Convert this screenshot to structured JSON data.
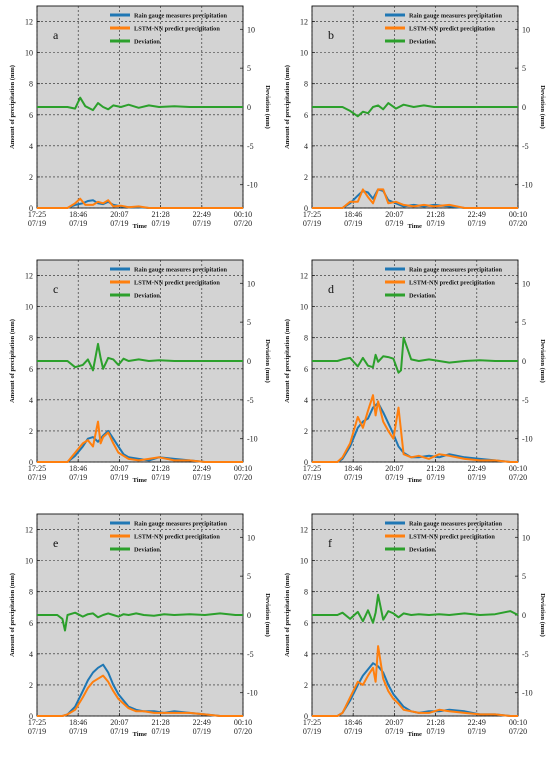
{
  "colors": {
    "gauge": "#1f77b4",
    "lstm": "#ff7f0e",
    "deviation": "#2ca02c",
    "plot_bg": "#d3d3d3"
  },
  "legend": {
    "gauge": "Rain gauge measures precipitation",
    "lstm": "LSTM-NN predict precipitation",
    "deviation": "Deviation"
  },
  "axes": {
    "ylabel_left": "Amount of precipitation (mm)",
    "ylabel_right": "Deviation (mm)",
    "xlabel": "Time",
    "x_ticks": [
      {
        "time": "17:25",
        "date": "07/19"
      },
      {
        "time": "18:46",
        "date": "07/19"
      },
      {
        "time": "20:07",
        "date": "07/19"
      },
      {
        "time": "21:28",
        "date": "07/19"
      },
      {
        "time": "22:49",
        "date": "07/19"
      },
      {
        "time": "00:10",
        "date": "07/20"
      }
    ],
    "y_left_ticks": [
      "0",
      "2",
      "4",
      "6",
      "8",
      "10",
      "12"
    ],
    "y_right_ticks": [
      "10",
      "5",
      "0",
      "-5",
      "-10"
    ]
  },
  "chart_data": [
    {
      "type": "line",
      "panel_label": "a",
      "xlabel": "Time",
      "ylabel": "Amount of precipitation (mm)",
      "y2label": "Deviation (mm)",
      "xlim_minutes_from_1725": [
        0,
        405
      ],
      "ylim": [
        0,
        13
      ],
      "y2lim": [
        -13,
        13
      ],
      "grid": true,
      "legend_position": "top-right",
      "series": [
        {
          "name": "Rain gauge measures precipitation",
          "x": [
            0,
            50,
            60,
            75,
            90,
            100,
            110,
            120,
            130,
            140,
            150,
            165,
            180,
            200,
            220,
            240,
            270,
            300,
            330,
            360,
            405
          ],
          "values": [
            0,
            0,
            0,
            0.2,
            0.3,
            0.45,
            0.5,
            0.3,
            0.25,
            0.4,
            0.2,
            0.1,
            0.05,
            0.05,
            0,
            0,
            0,
            0,
            0,
            0,
            0
          ]
        },
        {
          "name": "LSTM-NN predict precipitation",
          "x": [
            0,
            50,
            60,
            75,
            85,
            95,
            110,
            120,
            130,
            140,
            150,
            165,
            180,
            200,
            220,
            240,
            270,
            300,
            330,
            360,
            405
          ],
          "values": [
            0,
            0,
            0,
            0.3,
            0.6,
            0.2,
            0.2,
            0.4,
            0.3,
            0.5,
            0.1,
            0.15,
            0.05,
            0.1,
            0,
            0,
            0,
            0,
            0,
            0,
            0
          ]
        },
        {
          "name": "Deviation",
          "x": [
            0,
            60,
            75,
            85,
            95,
            110,
            120,
            130,
            140,
            150,
            165,
            180,
            200,
            220,
            240,
            270,
            300,
            330,
            360,
            405
          ],
          "values": [
            0,
            0,
            -0.2,
            1.2,
            0.1,
            -0.4,
            0.5,
            0,
            -0.3,
            0.2,
            0,
            0.3,
            -0.1,
            0.2,
            0,
            0.1,
            0,
            0,
            0,
            0
          ]
        }
      ]
    },
    {
      "type": "line",
      "panel_label": "b",
      "xlabel": "Time",
      "ylabel": "Amount of precipitation (mm)",
      "y2label": "Deviation (mm)",
      "xlim_minutes_from_1725": [
        0,
        405
      ],
      "ylim": [
        0,
        13
      ],
      "y2lim": [
        -13,
        13
      ],
      "grid": true,
      "legend_position": "top-right",
      "series": [
        {
          "name": "Rain gauge measures precipitation",
          "x": [
            0,
            60,
            75,
            90,
            100,
            110,
            120,
            130,
            140,
            150,
            165,
            180,
            200,
            220,
            240,
            270,
            300,
            330,
            360,
            405
          ],
          "values": [
            0,
            0,
            0.3,
            0.8,
            1.1,
            1.0,
            0.6,
            1.2,
            1.1,
            0.5,
            0.3,
            0.1,
            0.2,
            0.1,
            0.2,
            0.1,
            0,
            0,
            0,
            0
          ]
        },
        {
          "name": "LSTM-NN predict precipitation",
          "x": [
            0,
            60,
            75,
            90,
            100,
            110,
            120,
            130,
            140,
            150,
            165,
            180,
            200,
            220,
            240,
            270,
            300,
            330,
            360,
            405
          ],
          "values": [
            0,
            0,
            0.4,
            0.4,
            1.2,
            0.7,
            0.3,
            1.2,
            1.2,
            0.3,
            0.4,
            0.2,
            0.1,
            0.2,
            0.1,
            0.2,
            0,
            0,
            0,
            0
          ]
        },
        {
          "name": "Deviation",
          "x": [
            0,
            60,
            75,
            90,
            100,
            110,
            120,
            130,
            140,
            150,
            165,
            180,
            200,
            220,
            240,
            270,
            300,
            330,
            360,
            405
          ],
          "values": [
            0,
            0,
            -0.5,
            -1.2,
            -0.6,
            -0.8,
            0,
            0.2,
            -0.3,
            0.5,
            -0.2,
            0.3,
            0,
            0.2,
            0,
            0,
            0,
            0,
            0,
            0
          ]
        }
      ]
    },
    {
      "type": "line",
      "panel_label": "c",
      "xlabel": "Time",
      "ylabel": "Amount of precipitation (mm)",
      "y2label": "Deviation (mm)",
      "xlim_minutes_from_1725": [
        0,
        405
      ],
      "ylim": [
        0,
        13
      ],
      "y2lim": [
        -13,
        13
      ],
      "grid": true,
      "legend_position": "top-right",
      "series": [
        {
          "name": "Rain gauge measures precipitation",
          "x": [
            0,
            60,
            75,
            90,
            100,
            110,
            120,
            130,
            140,
            150,
            160,
            170,
            180,
            200,
            220,
            240,
            270,
            300,
            330,
            360,
            405
          ],
          "values": [
            0,
            0,
            0.4,
            1.0,
            1.5,
            1.6,
            1.3,
            1.7,
            2.0,
            1.5,
            1.0,
            0.5,
            0.3,
            0.2,
            0.1,
            0.3,
            0.2,
            0.1,
            0,
            0,
            0
          ]
        },
        {
          "name": "LSTM-NN predict precipitation",
          "x": [
            0,
            60,
            75,
            90,
            100,
            110,
            120,
            125,
            130,
            140,
            150,
            160,
            170,
            180,
            200,
            220,
            240,
            270,
            300,
            330,
            360,
            405
          ],
          "values": [
            0,
            0,
            0.6,
            1.2,
            1.4,
            1.0,
            2.6,
            1.2,
            1.6,
            1.9,
            1.2,
            0.6,
            0.4,
            0.2,
            0.1,
            0.2,
            0.3,
            0.1,
            0.1,
            0,
            0,
            0
          ]
        },
        {
          "name": "Deviation",
          "x": [
            0,
            60,
            75,
            90,
            100,
            110,
            120,
            125,
            130,
            140,
            150,
            160,
            170,
            180,
            200,
            220,
            240,
            270,
            300,
            330,
            360,
            405
          ],
          "values": [
            0,
            0,
            -0.8,
            -0.5,
            0.2,
            -1.2,
            2.2,
            0.4,
            -1.0,
            0.4,
            0.2,
            -0.5,
            0.3,
            0,
            0.2,
            0,
            0.1,
            0,
            0,
            0,
            0,
            0
          ]
        }
      ]
    },
    {
      "type": "line",
      "panel_label": "d",
      "xlabel": "Time",
      "ylabel": "Amount of precipitation (mm)",
      "y2label": "Deviation (mm)",
      "xlim_minutes_from_1725": [
        0,
        405
      ],
      "ylim": [
        0,
        13
      ],
      "y2lim": [
        -13,
        13
      ],
      "grid": true,
      "legend_position": "top-right",
      "series": [
        {
          "name": "Rain gauge measures precipitation",
          "x": [
            0,
            50,
            60,
            75,
            90,
            100,
            110,
            120,
            130,
            140,
            150,
            160,
            170,
            180,
            195,
            210,
            230,
            250,
            270,
            300,
            330,
            360,
            390,
            405
          ],
          "values": [
            0,
            0,
            0.2,
            1.0,
            2.2,
            2.6,
            2.8,
            3.5,
            3.8,
            3.2,
            2.5,
            1.8,
            1.0,
            0.6,
            0.3,
            0.3,
            0.4,
            0.3,
            0.5,
            0.3,
            0.2,
            0.1,
            0,
            0
          ]
        },
        {
          "name": "LSTM-NN predict precipitation",
          "x": [
            0,
            50,
            60,
            75,
            90,
            100,
            110,
            120,
            125,
            130,
            140,
            150,
            160,
            170,
            180,
            195,
            210,
            230,
            250,
            270,
            300,
            330,
            360,
            390,
            405
          ],
          "values": [
            0,
            0,
            0.3,
            1.2,
            2.9,
            2.2,
            3.3,
            4.3,
            3.0,
            3.9,
            2.6,
            2.0,
            1.5,
            3.5,
            0.5,
            0.3,
            0.4,
            0.2,
            0.5,
            0.4,
            0.2,
            0.1,
            0.1,
            0,
            0
          ]
        },
        {
          "name": "Deviation",
          "x": [
            0,
            50,
            60,
            75,
            90,
            100,
            110,
            120,
            125,
            130,
            140,
            150,
            160,
            170,
            175,
            180,
            195,
            210,
            230,
            250,
            270,
            300,
            330,
            360,
            390,
            405
          ],
          "values": [
            0,
            0,
            0.2,
            0.4,
            -0.7,
            0.4,
            -0.6,
            -0.8,
            0.8,
            -0.1,
            0.6,
            0.5,
            0.3,
            -1.5,
            -1.2,
            3.0,
            0.2,
            0,
            0.2,
            0,
            -0.2,
            0,
            0.1,
            0,
            0,
            0
          ]
        }
      ]
    },
    {
      "type": "line",
      "panel_label": "e",
      "xlabel": "Time",
      "ylabel": "Amount of precipitation (mm)",
      "y2label": "Deviation (mm)",
      "xlim_minutes_from_1725": [
        0,
        405
      ],
      "ylim": [
        0,
        13
      ],
      "y2lim": [
        -13,
        13
      ],
      "grid": true,
      "legend_position": "top-right",
      "series": [
        {
          "name": "Rain gauge measures precipitation",
          "x": [
            0,
            50,
            60,
            75,
            90,
            100,
            110,
            120,
            130,
            140,
            150,
            160,
            170,
            180,
            195,
            210,
            230,
            250,
            270,
            300,
            330,
            360,
            390,
            405
          ],
          "values": [
            0,
            0,
            0.1,
            0.6,
            1.6,
            2.3,
            2.8,
            3.1,
            3.3,
            2.8,
            2.0,
            1.4,
            1.0,
            0.6,
            0.4,
            0.3,
            0.3,
            0.2,
            0.3,
            0.2,
            0.1,
            0,
            0,
            0
          ]
        },
        {
          "name": "LSTM-NN predict precipitation",
          "x": [
            0,
            50,
            60,
            75,
            90,
            100,
            110,
            120,
            130,
            140,
            150,
            160,
            170,
            180,
            195,
            210,
            230,
            250,
            270,
            300,
            330,
            360,
            390,
            405
          ],
          "values": [
            0,
            0,
            0.1,
            0.4,
            1.2,
            1.8,
            2.2,
            2.4,
            2.6,
            2.2,
            1.6,
            1.1,
            0.8,
            0.5,
            0.3,
            0.3,
            0.2,
            0.2,
            0.2,
            0.2,
            0.1,
            0,
            0,
            0
          ]
        },
        {
          "name": "Deviation",
          "x": [
            0,
            40,
            50,
            55,
            60,
            75,
            90,
            100,
            110,
            120,
            130,
            140,
            150,
            160,
            170,
            180,
            195,
            210,
            230,
            250,
            270,
            300,
            330,
            360,
            390,
            405
          ],
          "values": [
            0,
            0,
            -0.5,
            -2.0,
            0,
            0.3,
            -0.2,
            0.1,
            0.2,
            -0.3,
            0,
            0.2,
            0,
            -0.2,
            0.1,
            0,
            0.2,
            0,
            -0.1,
            0.1,
            0,
            0.1,
            0,
            0.2,
            0,
            0
          ]
        }
      ]
    },
    {
      "type": "line",
      "panel_label": "f",
      "xlabel": "Time",
      "ylabel": "Amount of precipitation (mm)",
      "y2label": "Deviation (mm)",
      "xlim_minutes_from_1725": [
        0,
        405
      ],
      "ylim": [
        0,
        13
      ],
      "y2lim": [
        -13,
        13
      ],
      "grid": true,
      "legend_position": "top-right",
      "series": [
        {
          "name": "Rain gauge measures precipitation",
          "x": [
            0,
            50,
            60,
            75,
            90,
            100,
            110,
            120,
            130,
            140,
            150,
            160,
            170,
            180,
            195,
            210,
            230,
            250,
            270,
            300,
            330,
            360,
            390,
            405
          ],
          "values": [
            0,
            0,
            0.2,
            1.0,
            2.0,
            2.6,
            3.0,
            3.4,
            3.2,
            2.8,
            2.0,
            1.4,
            1.0,
            0.6,
            0.3,
            0.2,
            0.3,
            0.3,
            0.4,
            0.3,
            0.1,
            0.1,
            0,
            0
          ]
        },
        {
          "name": "LSTM-NN predict precipitation",
          "x": [
            0,
            50,
            60,
            75,
            90,
            100,
            110,
            120,
            125,
            130,
            140,
            150,
            160,
            170,
            180,
            195,
            210,
            230,
            250,
            270,
            300,
            330,
            360,
            390,
            405
          ],
          "values": [
            0,
            0,
            0.2,
            1.2,
            2.2,
            2.0,
            2.6,
            3.1,
            2.2,
            4.5,
            2.4,
            1.6,
            1.1,
            0.8,
            0.4,
            0.3,
            0.2,
            0.2,
            0.4,
            0.3,
            0.2,
            0.1,
            0.1,
            0,
            0
          ]
        },
        {
          "name": "Deviation",
          "x": [
            0,
            50,
            60,
            75,
            90,
            100,
            110,
            120,
            125,
            130,
            140,
            150,
            160,
            170,
            180,
            195,
            210,
            230,
            250,
            270,
            300,
            330,
            360,
            390,
            405
          ],
          "values": [
            0,
            0,
            0.3,
            -0.5,
            0.4,
            -0.8,
            0.6,
            -1.0,
            0.3,
            2.6,
            -0.6,
            0.5,
            0.2,
            -0.3,
            0.2,
            0,
            0.1,
            0,
            0.1,
            0,
            0.2,
            0,
            0.1,
            0.5,
            0
          ]
        }
      ]
    }
  ]
}
